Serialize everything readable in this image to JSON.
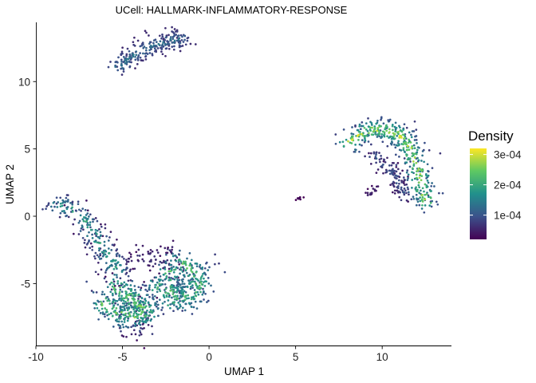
{
  "chart_data": {
    "type": "scatter",
    "title": "UCell: HALLMARK-INFLAMMATORY-RESPONSE",
    "xlabel": "UMAP 1",
    "ylabel": "UMAP 2",
    "xlim": [
      -10,
      14
    ],
    "ylim": [
      -9.6,
      14.4
    ],
    "x_ticks": [
      -10,
      -5,
      0,
      5,
      10
    ],
    "y_ticks": [
      -5,
      0,
      5,
      10
    ],
    "x_tick_labels": [
      "-10",
      "-5",
      "0",
      "5",
      "10"
    ],
    "y_tick_labels": [
      "-5",
      "0",
      "5",
      "10"
    ],
    "grid": false,
    "legend": {
      "title": "Density",
      "position": "right",
      "range": [
        2e-05,
        0.00032
      ],
      "ticks": [
        0.0001,
        0.0002,
        0.0003
      ],
      "tick_labels": [
        "1e-04",
        "2e-04",
        "3e-04"
      ],
      "colormap": "viridis",
      "colors": [
        "#440154",
        "#3b528b",
        "#21908c",
        "#5dc863",
        "#fde725"
      ]
    },
    "clusters": [
      {
        "name": "top",
        "points": [
          [
            -5.3,
            11.0
          ],
          [
            -4.8,
            11.6
          ],
          [
            -4.2,
            12.1
          ],
          [
            -3.5,
            12.5
          ],
          [
            -2.8,
            12.9
          ],
          [
            -2.0,
            13.1
          ],
          [
            -1.6,
            13.2
          ]
        ],
        "spread": 0.35,
        "count": 240,
        "density": [
          6e-05,
          0.00015
        ]
      },
      {
        "name": "left-arm",
        "points": [
          [
            -8.8,
            0.8
          ],
          [
            -8.0,
            0.6
          ],
          [
            -7.2,
            -0.4
          ],
          [
            -6.5,
            -1.6
          ],
          [
            -5.8,
            -3.0
          ],
          [
            -5.2,
            -4.2
          ]
        ],
        "spread": 0.45,
        "count": 240,
        "density": [
          5e-05,
          0.00022
        ]
      },
      {
        "name": "bottom-left",
        "points": [
          [
            -5.4,
            -5.2
          ],
          [
            -4.6,
            -6.0
          ],
          [
            -4.0,
            -6.6
          ],
          [
            -3.6,
            -7.2
          ],
          [
            -4.4,
            -7.5
          ],
          [
            -5.5,
            -7.0
          ],
          [
            -6.2,
            -6.4
          ]
        ],
        "spread": 0.55,
        "count": 380,
        "density": [
          8e-05,
          0.00028
        ]
      },
      {
        "name": "bottom-right",
        "points": [
          [
            -3.0,
            -5.2
          ],
          [
            -2.0,
            -5.8
          ],
          [
            -1.3,
            -6.2
          ],
          [
            -0.6,
            -5.2
          ],
          [
            -0.8,
            -4.2
          ],
          [
            -1.6,
            -3.4
          ],
          [
            -2.4,
            -4.4
          ],
          [
            -2.0,
            -6.8
          ]
        ],
        "spread": 0.55,
        "count": 380,
        "density": [
          8e-05,
          0.00026
        ]
      },
      {
        "name": "bottom-sparse",
        "points": [
          [
            -4.2,
            -2.8
          ],
          [
            -3.0,
            -3.4
          ],
          [
            -2.0,
            -2.8
          ],
          [
            -4.8,
            -3.6
          ],
          [
            -3.6,
            -8.2
          ],
          [
            -4.6,
            -8.3
          ]
        ],
        "spread": 0.6,
        "count": 120,
        "density": [
          3e-05,
          8e-05
        ]
      },
      {
        "name": "right-arc",
        "points": [
          [
            8.0,
            5.4
          ],
          [
            9.0,
            6.3
          ],
          [
            10.0,
            6.5
          ],
          [
            10.9,
            6.1
          ],
          [
            11.5,
            5.3
          ],
          [
            11.8,
            4.3
          ],
          [
            12.1,
            3.2
          ],
          [
            12.3,
            2.0
          ],
          [
            12.6,
            1.0
          ]
        ],
        "spread": 0.4,
        "count": 420,
        "density": [
          8e-05,
          0.00032
        ]
      },
      {
        "name": "right-inner",
        "points": [
          [
            9.4,
            4.6
          ],
          [
            10.0,
            4.0
          ],
          [
            10.6,
            3.2
          ],
          [
            11.0,
            2.4
          ],
          [
            11.4,
            1.6
          ]
        ],
        "spread": 0.3,
        "count": 110,
        "density": [
          4e-05,
          0.00012
        ]
      },
      {
        "name": "right-tail",
        "points": [
          [
            9.0,
            1.4
          ],
          [
            9.4,
            1.8
          ],
          [
            9.7,
            2.2
          ]
        ],
        "spread": 0.15,
        "count": 18,
        "density": [
          3e-05,
          6e-05
        ]
      },
      {
        "name": "small-center",
        "points": [
          [
            5.2,
            1.3
          ]
        ],
        "spread": 0.08,
        "count": 8,
        "density": [
          2e-05,
          3e-05
        ]
      }
    ]
  }
}
